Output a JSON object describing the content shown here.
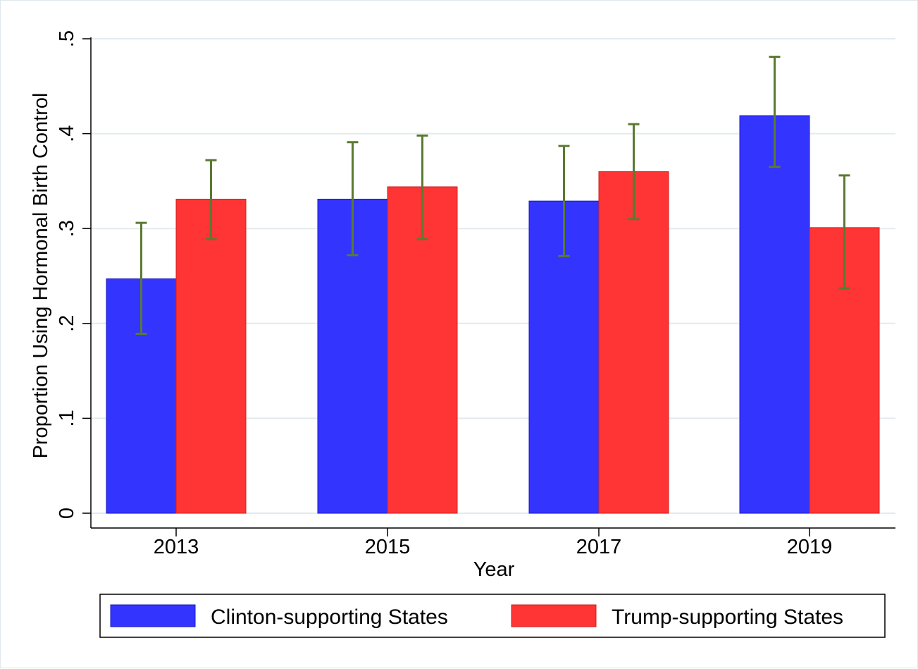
{
  "chart_data": {
    "type": "bar",
    "title": "",
    "xlabel": "Year",
    "ylabel": "Proportion Using Hormonal Birth Control",
    "categories": [
      "2013",
      "2015",
      "2017",
      "2019"
    ],
    "ylim": [
      0,
      0.5
    ],
    "yticks": [
      0,
      0.1,
      0.2,
      0.3,
      0.4,
      0.5
    ],
    "ytick_labels": [
      "0",
      ".1",
      ".2",
      ".3",
      ".4",
      ".5"
    ],
    "grid": true,
    "legend_position": "bottom",
    "error_bar_color": "#5a7a32",
    "series": [
      {
        "name": "Clinton-supporting States",
        "color": "#3434ff",
        "values": [
          0.247,
          0.331,
          0.329,
          0.419
        ],
        "ci_low": [
          0.189,
          0.272,
          0.271,
          0.365
        ],
        "ci_high": [
          0.306,
          0.391,
          0.387,
          0.481
        ]
      },
      {
        "name": "Trump-supporting States",
        "color": "#ff3434",
        "values": [
          0.331,
          0.344,
          0.36,
          0.301
        ],
        "ci_low": [
          0.289,
          0.289,
          0.31,
          0.237
        ],
        "ci_high": [
          0.372,
          0.398,
          0.41,
          0.356
        ]
      }
    ]
  }
}
